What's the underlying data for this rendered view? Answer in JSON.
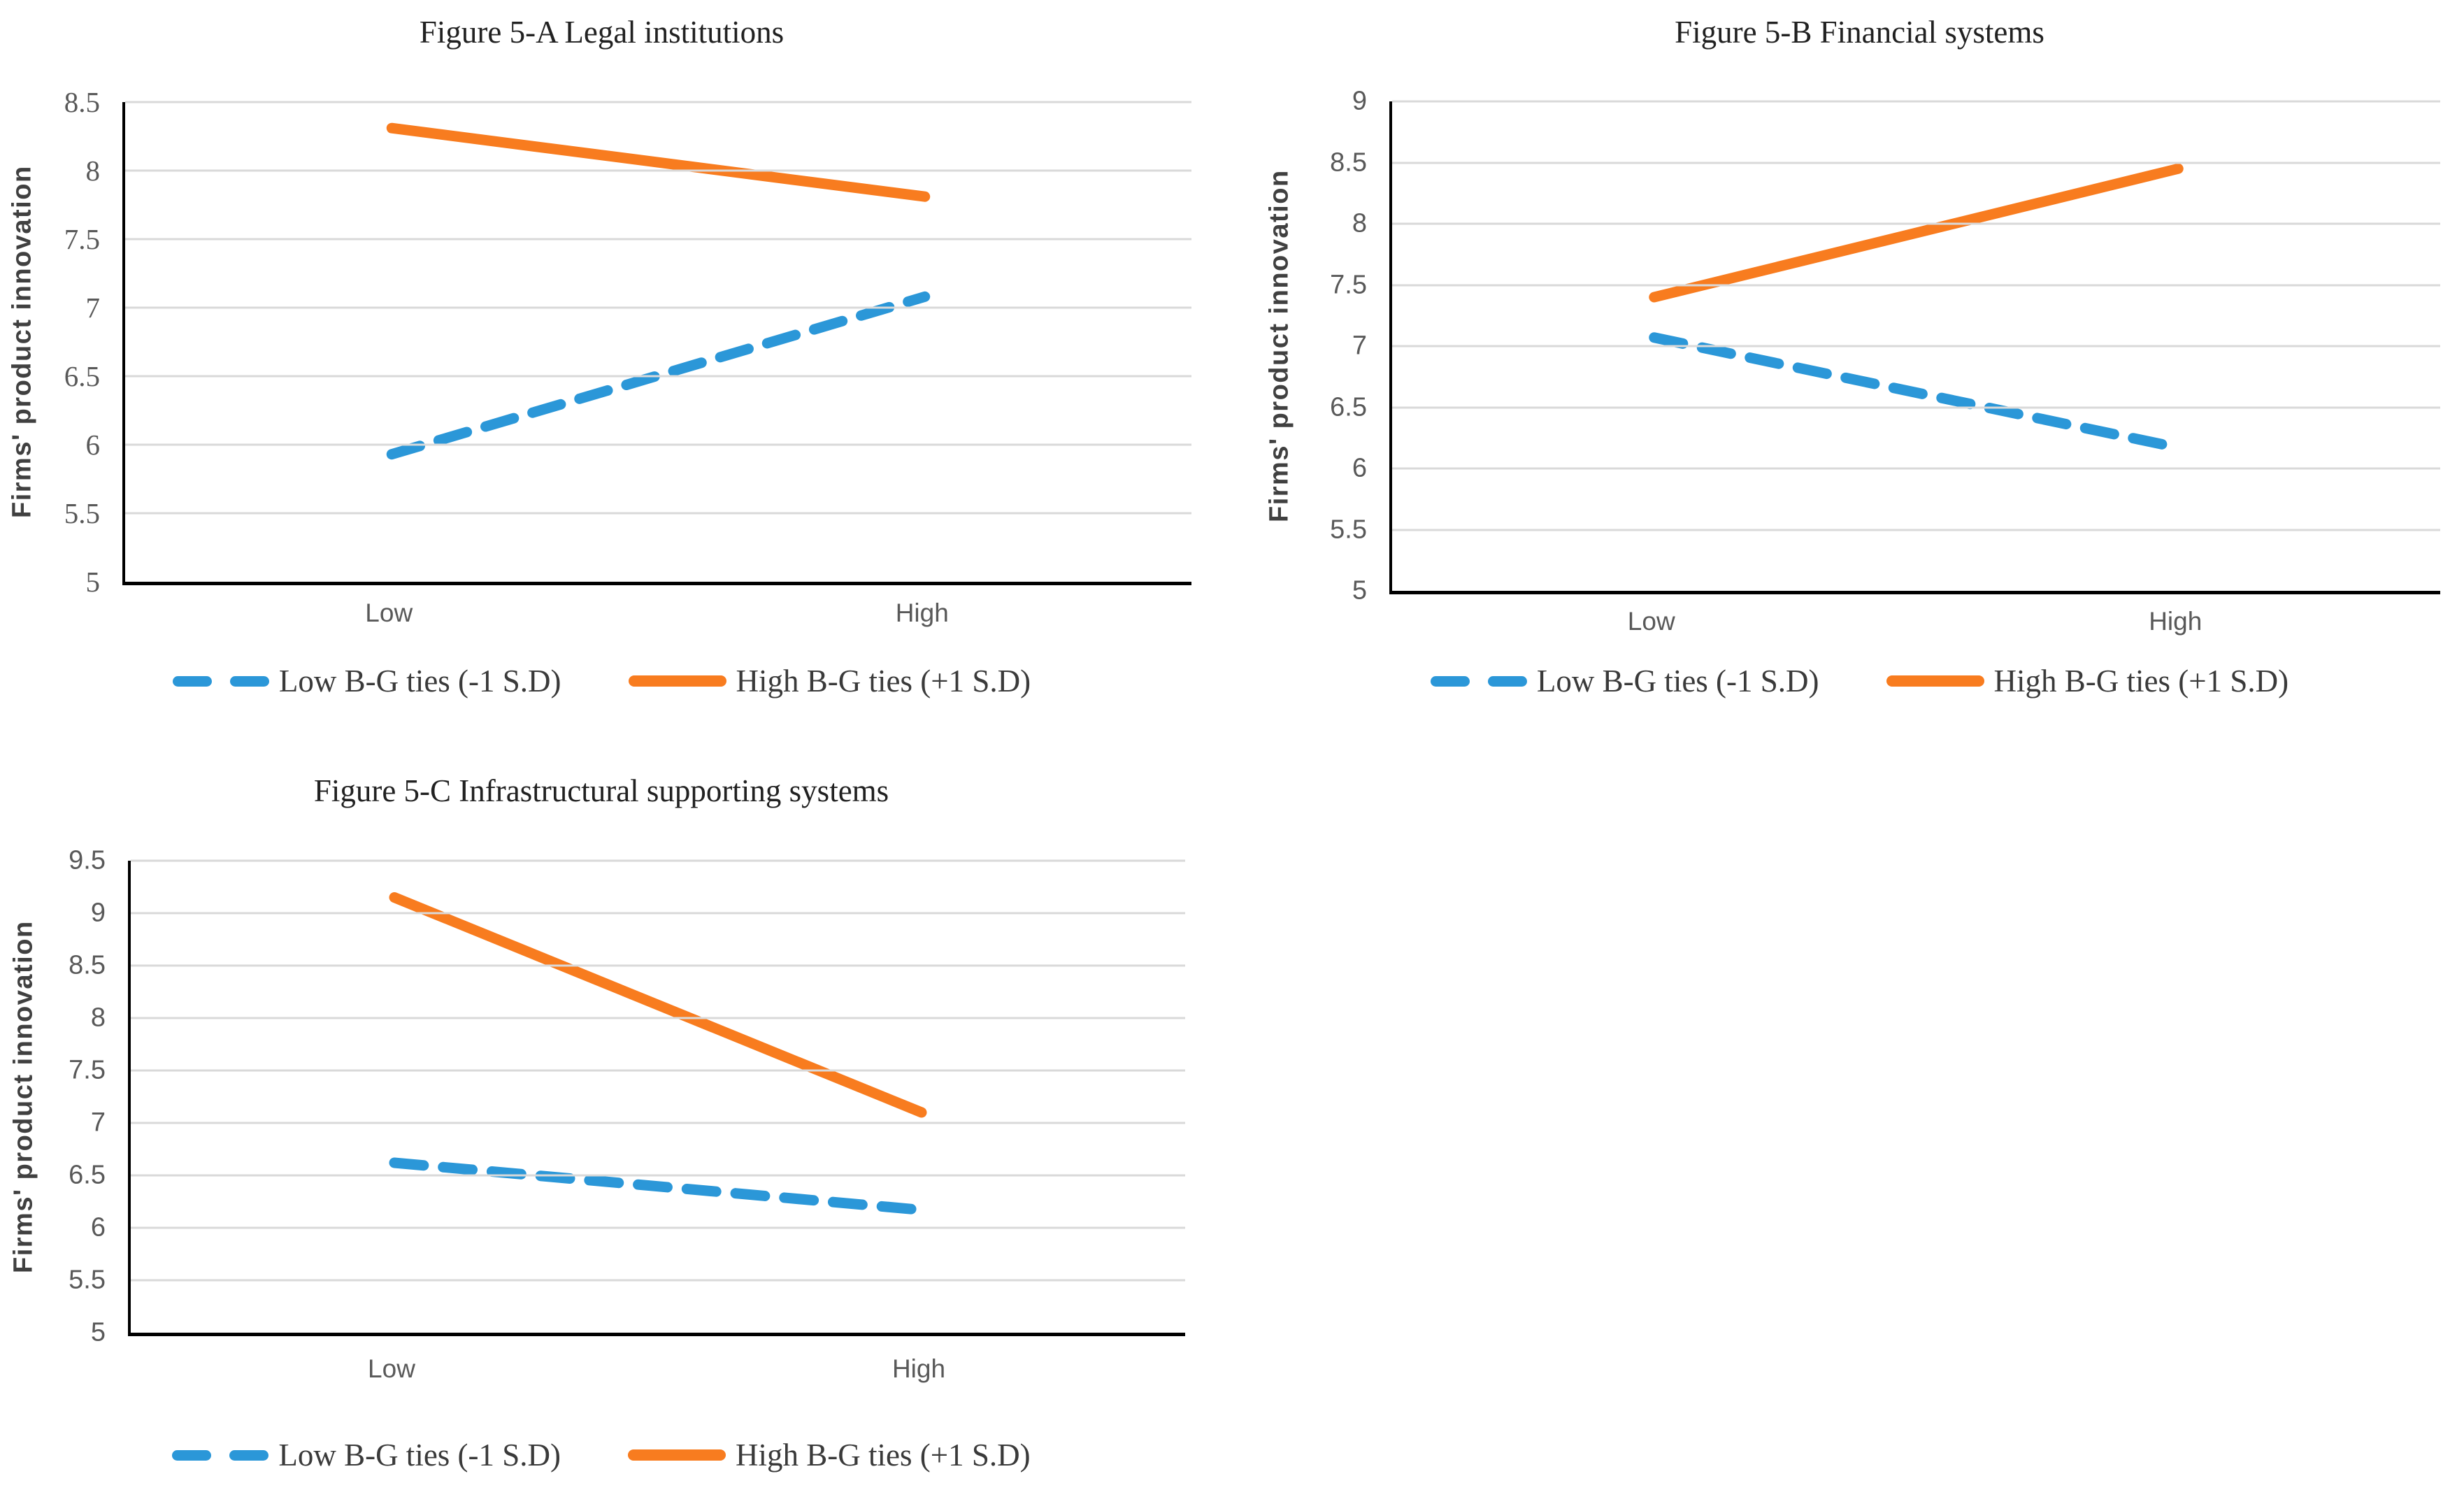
{
  "page": {
    "background": "#FFFFFF"
  },
  "colors": {
    "low_series": "#2B97D8",
    "high_series": "#F87C1F",
    "gridline": "#D9D9D9",
    "axis": "#000000",
    "tick_label": "#595959",
    "title_text": "#212121",
    "legend_text": "#3A3A3A",
    "y_axis_title": "#404040"
  },
  "chart_data": [
    {
      "type": "line",
      "title": "Figure 5-A Legal institutions",
      "ylabel": "Firms' product innovation",
      "xlabel": "",
      "categories": [
        "Low",
        "High"
      ],
      "ylim": [
        5,
        8.5
      ],
      "ytick_step": 0.5,
      "grid": true,
      "legend_position": "bottom",
      "series": [
        {
          "name": "Low B-G ties (-1 S.D)",
          "style": "dashed",
          "color": "#2B97D8",
          "values": [
            5.93,
            7.08
          ]
        },
        {
          "name": "High B-G ties (+1 S.D)",
          "style": "solid",
          "color": "#F87C1F",
          "values": [
            8.31,
            7.81
          ]
        }
      ]
    },
    {
      "type": "line",
      "title": "Figure 5-B Financial systems",
      "ylabel": "Firms' product innovation",
      "xlabel": "",
      "categories": [
        "Low",
        "High"
      ],
      "ylim": [
        5,
        9
      ],
      "ytick_step": 0.5,
      "grid": true,
      "legend_position": "bottom",
      "series": [
        {
          "name": "Low B-G ties (-1 S.D)",
          "style": "dashed",
          "color": "#2B97D8",
          "values": [
            7.07,
            6.17
          ]
        },
        {
          "name": "High B-G ties (+1 S.D)",
          "style": "solid",
          "color": "#F87C1F",
          "values": [
            7.4,
            8.45
          ]
        }
      ]
    },
    {
      "type": "line",
      "title": "Figure 5-C Infrastructural supporting systems",
      "ylabel": "Firms' product innovation",
      "xlabel": "",
      "categories": [
        "Low",
        "High"
      ],
      "ylim": [
        5,
        9.5
      ],
      "ytick_step": 0.5,
      "grid": true,
      "legend_position": "bottom",
      "series": [
        {
          "name": "Low B-G ties (-1 S.D)",
          "style": "dashed",
          "color": "#2B97D8",
          "values": [
            6.62,
            6.17
          ]
        },
        {
          "name": "High B-G ties (+1 S.D)",
          "style": "solid",
          "color": "#F87C1F",
          "values": [
            9.15,
            7.1
          ]
        }
      ]
    }
  ]
}
